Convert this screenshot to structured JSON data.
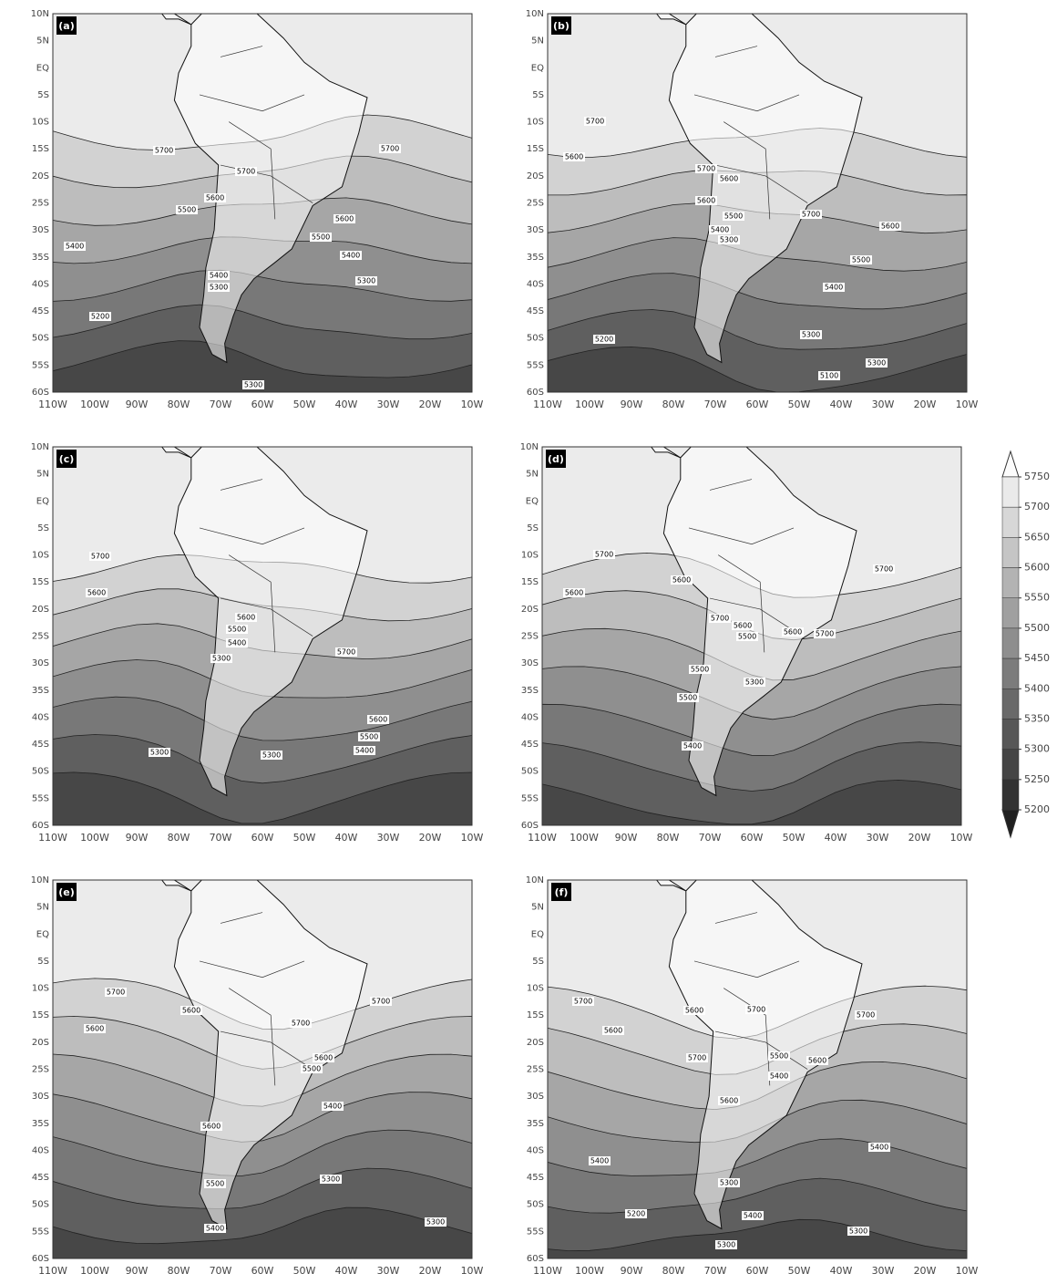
{
  "lat_ticks": [
    "10N",
    "5N",
    "EQ",
    "5S",
    "10S",
    "15S",
    "20S",
    "25S",
    "30S",
    "35S",
    "40S",
    "45S",
    "50S",
    "55S",
    "60S"
  ],
  "lon_ticks": [
    "110W",
    "100W",
    "90W",
    "80W",
    "70W",
    "60W",
    "50W",
    "40W",
    "30W",
    "20W",
    "10W"
  ],
  "panels": [
    {
      "label": "(a)",
      "contour_labels": [
        5700,
        5700,
        5700,
        5600,
        5500,
        5600,
        5500,
        5400,
        5400,
        5400,
        5300,
        5300,
        5200,
        5300
      ]
    },
    {
      "label": "(b)",
      "contour_labels": [
        5700,
        5600,
        5700,
        5600,
        5600,
        5500,
        5400,
        5300,
        5700,
        5600,
        5500,
        5400,
        5300,
        5200,
        5300,
        5100
      ]
    },
    {
      "label": "(c)",
      "contour_labels": [
        5700,
        5600,
        5600,
        5500,
        5400,
        5300,
        5700,
        5600,
        5500,
        5400,
        5300,
        5300
      ]
    },
    {
      "label": "(d)",
      "contour_labels": [
        5700,
        5600,
        5600,
        5700,
        5700,
        5600,
        5500,
        5600,
        5700,
        5500,
        5300,
        5500,
        5400
      ]
    },
    {
      "label": "(e)",
      "contour_labels": [
        5700,
        5600,
        5600,
        5700,
        5700,
        5600,
        5500,
        5400,
        5600,
        5500,
        5300,
        5400,
        5300
      ]
    },
    {
      "label": "(f)",
      "contour_labels": [
        5700,
        5600,
        5700,
        5700,
        5600,
        5700,
        5500,
        5600,
        5400,
        5600,
        5400,
        5400,
        5300,
        5200,
        5400,
        5300,
        5300
      ]
    }
  ],
  "colorbar": {
    "levels": [
      5750,
      5700,
      5650,
      5600,
      5550,
      5500,
      5450,
      5400,
      5350,
      5300,
      5250,
      5200
    ]
  }
}
